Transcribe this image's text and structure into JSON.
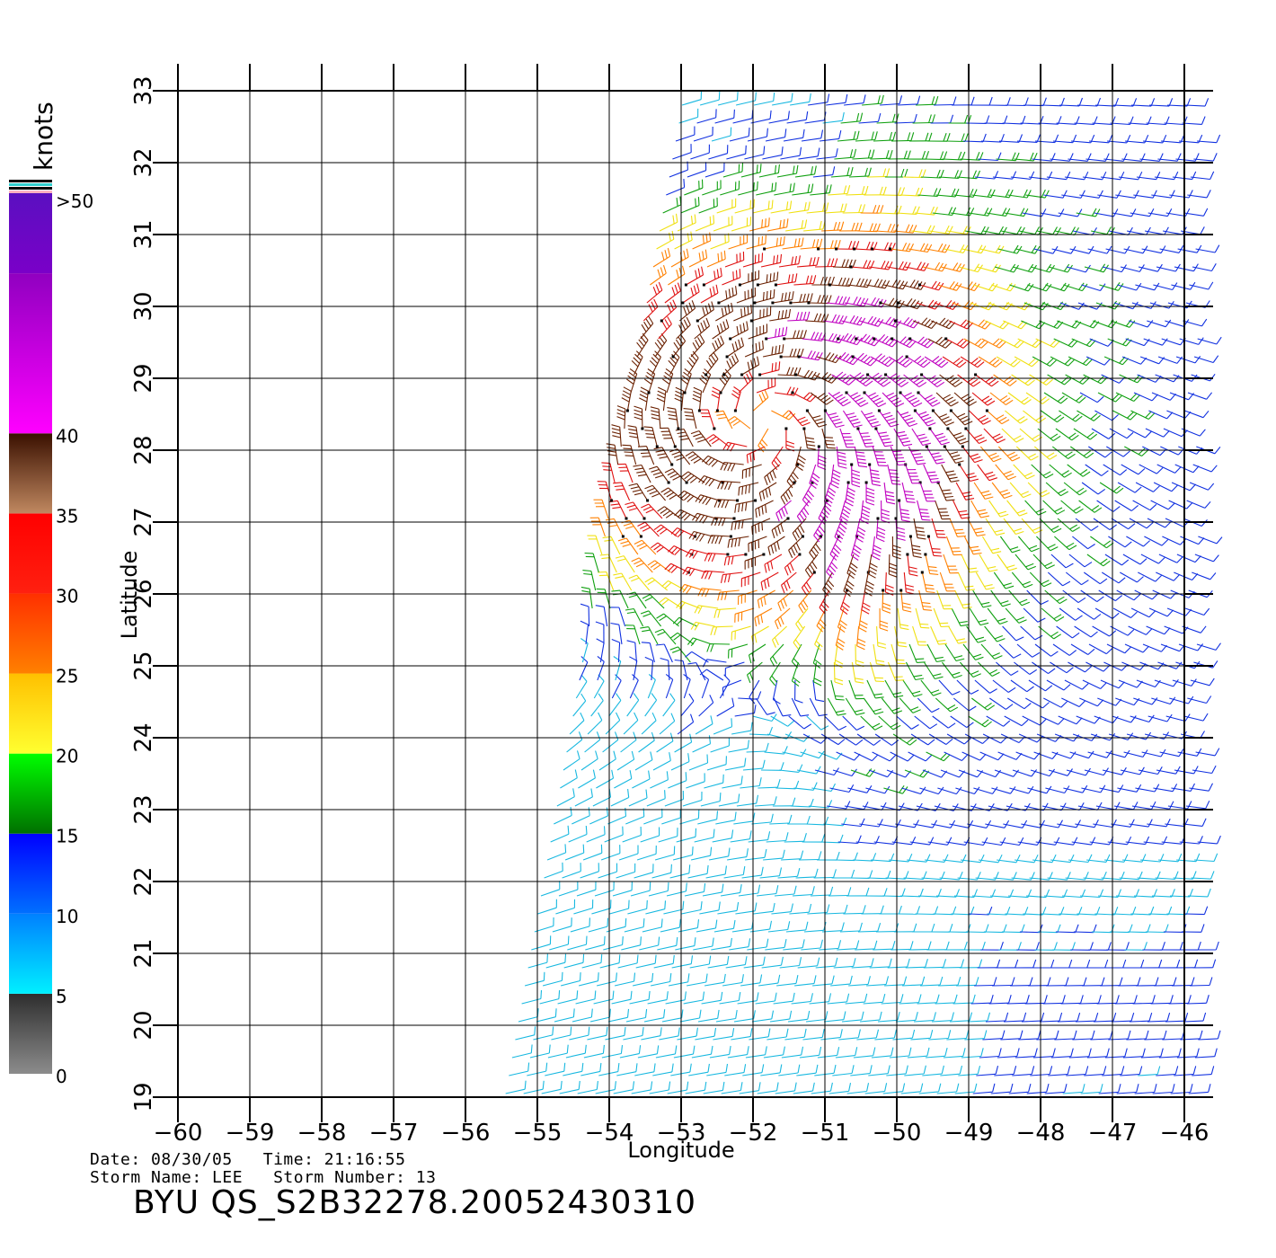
{
  "legend": {
    "unit": "knots",
    "bins": [
      {
        "label": "0",
        "from": 0,
        "to": 5,
        "colors": [
          "#8c8c8c",
          "#2e2e2e"
        ]
      },
      {
        "label": "5",
        "from": 5,
        "to": 10,
        "colors": [
          "#00f0ff",
          "#0080ff"
        ]
      },
      {
        "label": "10",
        "from": 10,
        "to": 15,
        "colors": [
          "#0070ff",
          "#0000ff"
        ]
      },
      {
        "label": "15",
        "from": 15,
        "to": 20,
        "colors": [
          "#007000",
          "#00ff00"
        ]
      },
      {
        "label": "20",
        "from": 20,
        "to": 25,
        "colors": [
          "#ffff30",
          "#ffc000"
        ]
      },
      {
        "label": "25",
        "from": 25,
        "to": 30,
        "colors": [
          "#ff8000",
          "#ff3000"
        ]
      },
      {
        "label": "30",
        "from": 30,
        "to": 35,
        "colors": [
          "#ff2010",
          "#ff0000"
        ]
      },
      {
        "label": "35",
        "from": 35,
        "to": 40,
        "colors": [
          "#c08860",
          "#3a1000"
        ]
      },
      {
        "label": "40",
        "from": 40,
        "to": 50,
        "colors": [
          "#ff00ff",
          "#9000c0"
        ]
      },
      {
        "label": ">50",
        "from": 50,
        "to": 60,
        "colors": [
          "#7a00c8",
          "#5a10c0"
        ]
      }
    ]
  },
  "map": {
    "xlabel": "Longitude",
    "ylabel": "Latitude",
    "lon_range": [
      -60,
      -46
    ],
    "lat_range": [
      19,
      33
    ],
    "lon_ticks": [
      "-60",
      "-59",
      "-58",
      "-57",
      "-56",
      "-55",
      "-54",
      "-53",
      "-52",
      "-51",
      "-50",
      "-49",
      "-48",
      "-47",
      "-46"
    ],
    "lat_ticks": [
      "19",
      "20",
      "21",
      "22",
      "23",
      "24",
      "25",
      "26",
      "27",
      "28",
      "29",
      "30",
      "31",
      "32",
      "33"
    ],
    "grid": true,
    "storm_center": [
      -51.9,
      28.4
    ],
    "swath": {
      "lat_bottom": 19,
      "lat_top": 33,
      "west_lon_at_bottom": -55.5,
      "west_lon_at_top": -53.0
    },
    "wind_field": "cyclonic circulation; strongest winds (30-45 kt) near the center, 20-25 kt in a band to the east, 15-20 kt over the eastern half, 5-15 kt to the south"
  },
  "footer": {
    "date_line": "Date: 08/30/05   Time: 21:16:55",
    "storm_line": "Storm Name: LEE   Storm Number: 13",
    "title": "BYU  QS_S2B32278.20052430310"
  }
}
